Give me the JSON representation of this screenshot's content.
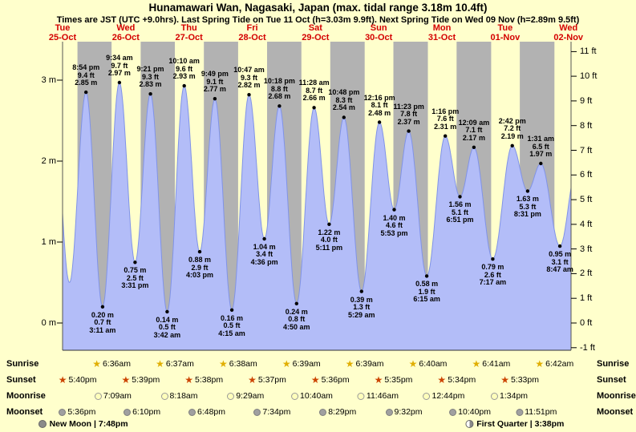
{
  "header": {
    "title": "Hunamawari Wan, Nagasaki, Japan (max. tidal range 3.18m 10.4ft)",
    "subtitle": "Times are JST (UTC +9.0hrs). Last Spring Tide on Tue 11 Oct (h=3.03m 9.9ft). Next Spring Tide on Wed 09 Nov (h=2.89m 9.5ft)"
  },
  "chart_data": {
    "type": "area",
    "title": "Hunamawari Wan, Nagasaki, Japan tide curve",
    "unit_m": "m",
    "unit_ft": "ft",
    "time_origin": "Tue 25-Oct 12:00 JST",
    "hours_span": 193,
    "ft_range": [
      -1,
      11
    ],
    "days": [
      {
        "name": "Tue",
        "date": "25-Oct"
      },
      {
        "name": "Wed",
        "date": "26-Oct"
      },
      {
        "name": "Thu",
        "date": "27-Oct"
      },
      {
        "name": "Fri",
        "date": "28-Oct"
      },
      {
        "name": "Sat",
        "date": "29-Oct"
      },
      {
        "name": "Sun",
        "date": "30-Oct"
      },
      {
        "name": "Mon",
        "date": "31-Oct"
      },
      {
        "name": "Tue",
        "date": "01-Nov"
      },
      {
        "name": "Wed",
        "date": "02-Nov"
      }
    ],
    "axis_left_ticks": [
      {
        "label": "0 m",
        "m": 0
      },
      {
        "label": "1 m",
        "m": 1
      },
      {
        "label": "2 m",
        "m": 2
      },
      {
        "label": "3 m",
        "m": 3
      }
    ],
    "axis_right_ticks": [
      {
        "label": "-1 ft",
        "ft": -1
      },
      {
        "label": "0 ft",
        "ft": 0
      },
      {
        "label": "1 ft",
        "ft": 1
      },
      {
        "label": "2 ft",
        "ft": 2
      },
      {
        "label": "3 ft",
        "ft": 3
      },
      {
        "label": "4 ft",
        "ft": 4
      },
      {
        "label": "5 ft",
        "ft": 5
      },
      {
        "label": "6 ft",
        "ft": 6
      },
      {
        "label": "7 ft",
        "ft": 7
      },
      {
        "label": "8 ft",
        "ft": 8
      },
      {
        "label": "9 ft",
        "ft": 9
      },
      {
        "label": "10 ft",
        "ft": 10
      },
      {
        "label": "11 ft",
        "ft": 11
      }
    ],
    "tide_events": [
      {
        "type": "high",
        "day": "Tue 25-Oct",
        "time": "8:54 pm",
        "t": 8.9,
        "m": 2.85,
        "ft": 9.4
      },
      {
        "type": "low",
        "day": "Wed 26-Oct",
        "time": "3:11 am",
        "t": 15.18,
        "m": 0.2,
        "ft": 0.7
      },
      {
        "type": "high",
        "day": "Wed 26-Oct",
        "time": "9:34 am",
        "t": 21.57,
        "m": 2.97,
        "ft": 9.7
      },
      {
        "type": "low",
        "day": "Wed 26-Oct",
        "time": "3:31 pm",
        "t": 27.52,
        "m": 0.75,
        "ft": 2.5
      },
      {
        "type": "high",
        "day": "Wed 26-Oct",
        "time": "9:21 pm",
        "t": 33.35,
        "m": 2.83,
        "ft": 9.3
      },
      {
        "type": "low",
        "day": "Thu 27-Oct",
        "time": "3:42 am",
        "t": 39.7,
        "m": 0.14,
        "ft": 0.5
      },
      {
        "type": "high",
        "day": "Thu 27-Oct",
        "time": "10:10 am",
        "t": 46.17,
        "m": 2.93,
        "ft": 9.6
      },
      {
        "type": "low",
        "day": "Thu 27-Oct",
        "time": "4:03 pm",
        "t": 52.05,
        "m": 0.88,
        "ft": 2.9
      },
      {
        "type": "high",
        "day": "Thu 27-Oct",
        "time": "9:49 pm",
        "t": 57.82,
        "m": 2.77,
        "ft": 9.1
      },
      {
        "type": "low",
        "day": "Fri 28-Oct",
        "time": "4:15 am",
        "t": 64.25,
        "m": 0.16,
        "ft": 0.5
      },
      {
        "type": "high",
        "day": "Fri 28-Oct",
        "time": "10:47 am",
        "t": 70.78,
        "m": 2.82,
        "ft": 9.3
      },
      {
        "type": "low",
        "day": "Fri 28-Oct",
        "time": "4:36 pm",
        "t": 76.6,
        "m": 1.04,
        "ft": 3.4
      },
      {
        "type": "high",
        "day": "Fri 28-Oct",
        "time": "10:18 pm",
        "t": 82.3,
        "m": 2.68,
        "ft": 8.8
      },
      {
        "type": "low",
        "day": "Sat 29-Oct",
        "time": "4:50 am",
        "t": 88.83,
        "m": 0.24,
        "ft": 0.8
      },
      {
        "type": "high",
        "day": "Sat 29-Oct",
        "time": "11:28 am",
        "t": 95.47,
        "m": 2.66,
        "ft": 8.7
      },
      {
        "type": "low",
        "day": "Sat 29-Oct",
        "time": "5:11 pm",
        "t": 101.18,
        "m": 1.22,
        "ft": 4.0
      },
      {
        "type": "high",
        "day": "Sat 29-Oct",
        "time": "10:48 pm",
        "t": 106.8,
        "m": 2.54,
        "ft": 8.3
      },
      {
        "type": "low",
        "day": "Sun 30-Oct",
        "time": "5:29 am",
        "t": 113.48,
        "m": 0.39,
        "ft": 1.3
      },
      {
        "type": "high",
        "day": "Sun 30-Oct",
        "time": "12:16 pm",
        "t": 120.27,
        "m": 2.48,
        "ft": 8.1
      },
      {
        "type": "low",
        "day": "Sun 30-Oct",
        "time": "5:53 pm",
        "t": 125.88,
        "m": 1.4,
        "ft": 4.6
      },
      {
        "type": "high",
        "day": "Sun 30-Oct",
        "time": "11:23 pm",
        "t": 131.38,
        "m": 2.37,
        "ft": 7.8
      },
      {
        "type": "low",
        "day": "Mon 31-Oct",
        "time": "6:15 am",
        "t": 138.25,
        "m": 0.58,
        "ft": 1.9
      },
      {
        "type": "high",
        "day": "Mon 31-Oct",
        "time": "1:16 pm",
        "t": 145.27,
        "m": 2.31,
        "ft": 7.6
      },
      {
        "type": "low",
        "day": "Mon 31-Oct",
        "time": "6:51 pm",
        "t": 150.85,
        "m": 1.56,
        "ft": 5.1
      },
      {
        "type": "high",
        "day": "Tue 01-Nov",
        "time": "12:09 am",
        "t": 156.15,
        "m": 2.17,
        "ft": 7.1
      },
      {
        "type": "low",
        "day": "Tue 01-Nov",
        "time": "7:17 am",
        "t": 163.28,
        "m": 0.79,
        "ft": 2.6
      },
      {
        "type": "high",
        "day": "Tue 01-Nov",
        "time": "2:42 pm",
        "t": 170.7,
        "m": 2.19,
        "ft": 7.2
      },
      {
        "type": "low",
        "day": "Tue 01-Nov",
        "time": "8:31 pm",
        "t": 176.52,
        "m": 1.63,
        "ft": 5.3
      },
      {
        "type": "high",
        "day": "Wed 02-Nov",
        "time": "1:31 am",
        "t": 181.52,
        "m": 1.97,
        "ft": 6.5
      },
      {
        "type": "low",
        "day": "Wed 02-Nov",
        "time": "8:47 am",
        "t": 188.78,
        "m": 0.95,
        "ft": 3.1
      }
    ],
    "night_bands": [
      [
        5.67,
        18.6
      ],
      [
        29.65,
        42.62
      ],
      [
        53.63,
        66.63
      ],
      [
        77.62,
        90.65
      ],
      [
        101.6,
        114.65
      ],
      [
        125.58,
        138.67
      ],
      [
        149.57,
        162.68
      ],
      [
        173.55,
        186.7
      ]
    ],
    "colors": {
      "background": "#ffffcc",
      "day_band": "#ffffcc",
      "night_band": "#b2b2b2",
      "water": "#b3bdf8",
      "water_edge": "#8093e8",
      "date_label": "#d40000"
    }
  },
  "almanac": {
    "rows": [
      {
        "label": "Sunrise",
        "icon": "sunrise-star",
        "entries": [
          {
            "time": "6:36am",
            "t": 18.6
          },
          {
            "time": "6:37am",
            "t": 42.62
          },
          {
            "time": "6:38am",
            "t": 66.63
          },
          {
            "time": "6:39am",
            "t": 90.65
          },
          {
            "time": "6:39am",
            "t": 114.65
          },
          {
            "time": "6:40am",
            "t": 138.67
          },
          {
            "time": "6:41am",
            "t": 162.68
          },
          {
            "time": "6:42am",
            "t": 186.7
          }
        ]
      },
      {
        "label": "Sunset",
        "icon": "sunset-star",
        "entries": [
          {
            "time": "5:40pm",
            "t": 5.67
          },
          {
            "time": "5:39pm",
            "t": 29.65
          },
          {
            "time": "5:38pm",
            "t": 53.63
          },
          {
            "time": "5:37pm",
            "t": 77.62
          },
          {
            "time": "5:36pm",
            "t": 101.6
          },
          {
            "time": "5:35pm",
            "t": 125.58
          },
          {
            "time": "5:34pm",
            "t": 149.57
          },
          {
            "time": "5:33pm",
            "t": 173.55
          }
        ]
      },
      {
        "label": "Moonrise",
        "icon": "moonrise-circle",
        "entries": [
          {
            "time": "7:09am",
            "t": 19.15
          },
          {
            "time": "8:18am",
            "t": 44.3
          },
          {
            "time": "9:29am",
            "t": 69.48
          },
          {
            "time": "10:40am",
            "t": 94.67
          },
          {
            "time": "11:46am",
            "t": 119.77
          },
          {
            "time": "12:44pm",
            "t": 144.73
          },
          {
            "time": "1:34pm",
            "t": 169.57
          }
        ]
      },
      {
        "label": "Moonset",
        "icon": "moonset-circle",
        "entries": [
          {
            "time": "5:36pm",
            "t": 5.6
          },
          {
            "time": "6:10pm",
            "t": 30.17
          },
          {
            "time": "6:48pm",
            "t": 54.8
          },
          {
            "time": "7:34pm",
            "t": 79.57
          },
          {
            "time": "8:29pm",
            "t": 104.48
          },
          {
            "time": "9:32pm",
            "t": 129.53
          },
          {
            "time": "10:40pm",
            "t": 154.67
          },
          {
            "time": "11:51pm",
            "t": 179.85
          }
        ]
      }
    ],
    "notes": [
      {
        "icon": "new-moon",
        "label": "New Moon | 7:48pm",
        "t": 7.8
      },
      {
        "icon": "first-quarter",
        "label": "First Quarter | 3:38pm",
        "t": 171.63
      }
    ]
  }
}
